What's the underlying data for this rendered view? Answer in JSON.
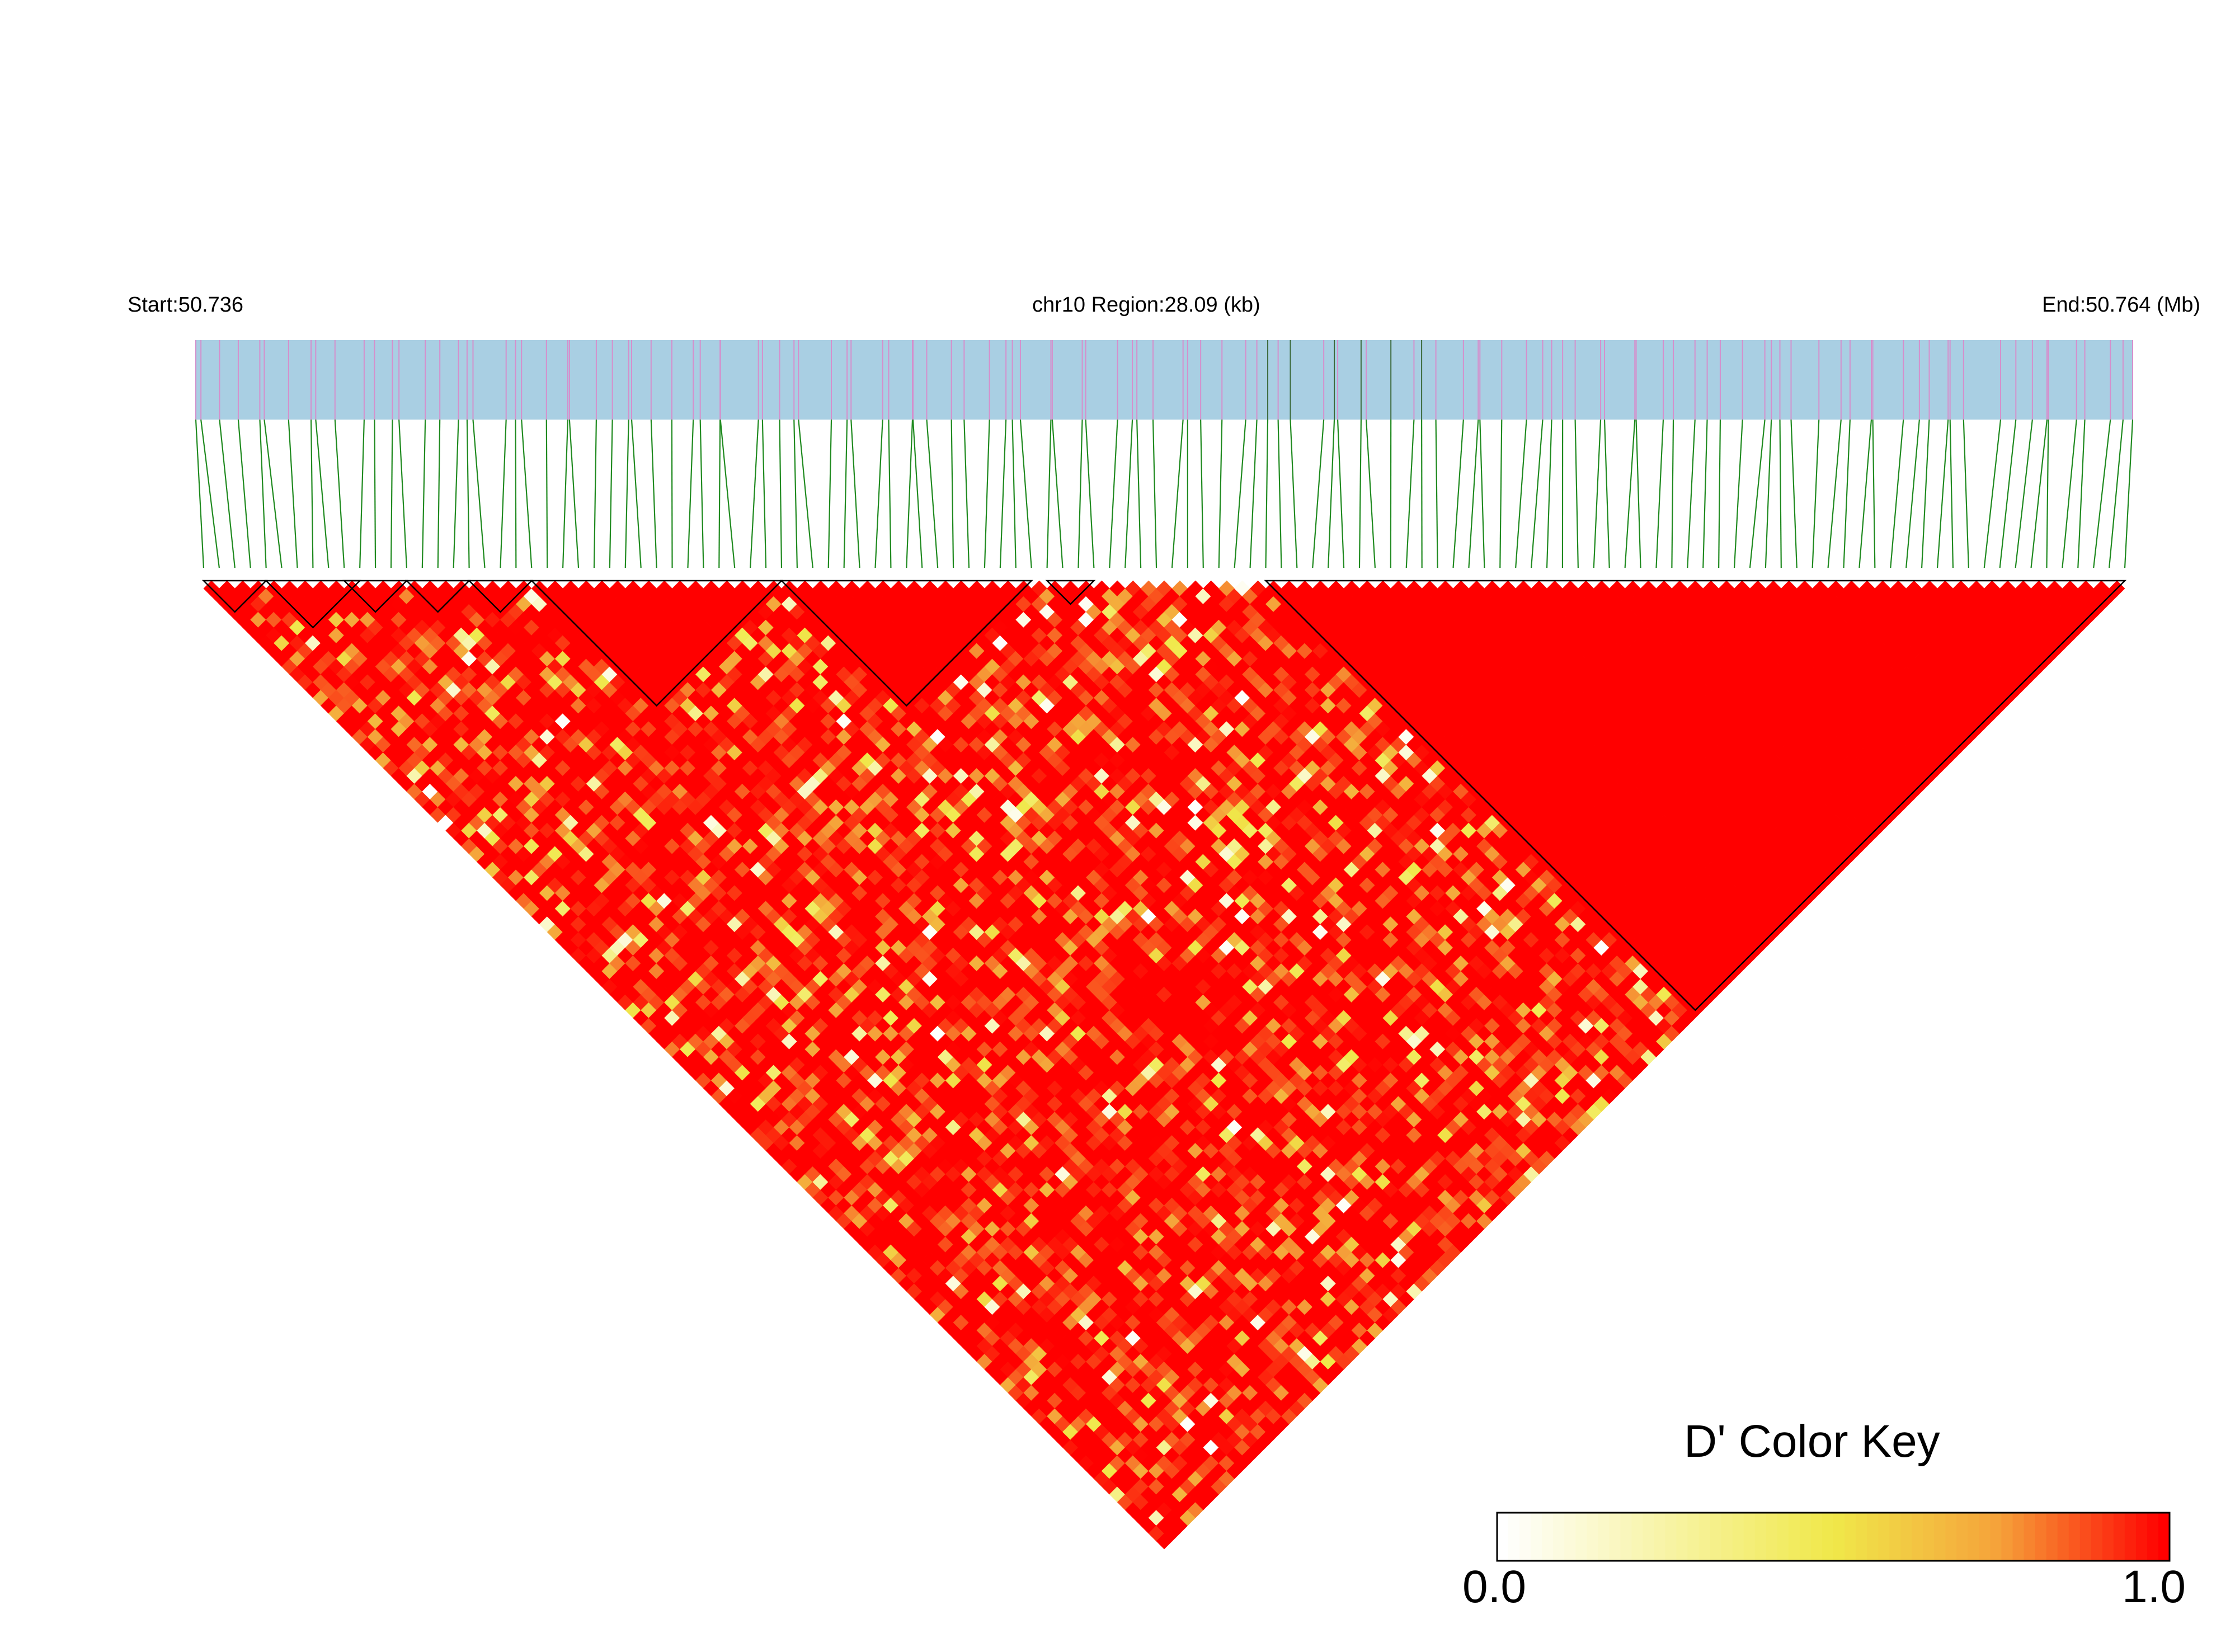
{
  "chart_data": {
    "type": "heatmap",
    "title": "",
    "start_label": "Start:50.736",
    "region_label": "chr10 Region:28.09 (kb)",
    "end_label": "End:50.764 (Mb)",
    "region": {
      "start_mb": 50.736,
      "end_mb": 50.764,
      "length_kb": 28.09,
      "chromosome": "chr10"
    },
    "n_snps": 124,
    "metric": "D'",
    "color_key": {
      "title": "D' Color Key",
      "min_label": "0.0",
      "max_label": "1.0",
      "min": 0.0,
      "max": 1.0,
      "colors": [
        "#ffffff",
        "#f0e84a",
        "#f5a23a",
        "#ff0000"
      ]
    },
    "colors": {
      "gene_track": "#a9cfe3",
      "snp_tick": "#d58fcc",
      "snp_tick_dark": "#3d6b3d",
      "connector": "#1f8a1f",
      "ld_high": "#ff0000",
      "block_outline": "#000000"
    },
    "ld_blocks": [
      {
        "first_snp": 1,
        "last_snp": 5
      },
      {
        "first_snp": 5,
        "last_snp": 11
      },
      {
        "first_snp": 10,
        "last_snp": 14
      },
      {
        "first_snp": 14,
        "last_snp": 18
      },
      {
        "first_snp": 18,
        "last_snp": 22
      },
      {
        "first_snp": 22,
        "last_snp": 38
      },
      {
        "first_snp": 38,
        "last_snp": 54
      },
      {
        "first_snp": 55,
        "last_snp": 58
      },
      {
        "first_snp": 69,
        "last_snp": 124
      }
    ]
  }
}
